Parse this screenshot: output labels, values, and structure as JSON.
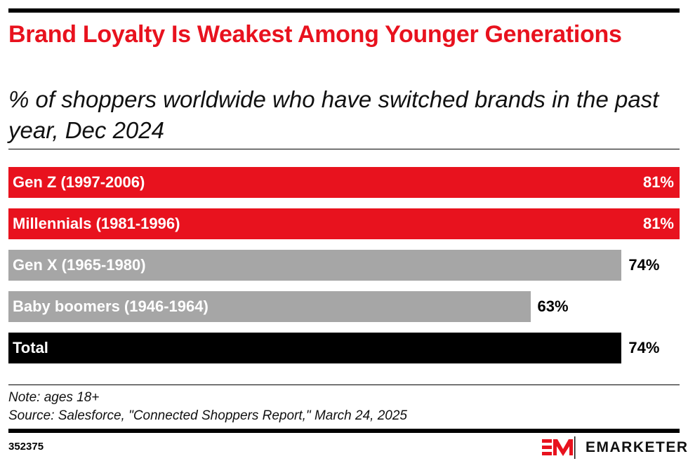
{
  "title": "Brand Loyalty Is Weakest Among Younger Generations",
  "subtitle": "% of shoppers worldwide who have switched brands in the past year, Dec 2024",
  "chart_data": {
    "type": "bar",
    "orientation": "horizontal",
    "categories": [
      "Gen Z (1997-2006)",
      "Millennials (1981-1996)",
      "Gen X (1965-1980)",
      "Baby boomers (1946-1964)",
      "Total"
    ],
    "values": [
      81,
      81,
      74,
      63,
      74
    ],
    "value_labels": [
      "81%",
      "81%",
      "74%",
      "63%",
      "74%"
    ],
    "colors": [
      "#e8121e",
      "#e8121e",
      "#a6a6a6",
      "#a6a6a6",
      "#000000"
    ],
    "xlim": [
      0,
      81
    ],
    "grid": false
  },
  "note": "Note: ages 18+",
  "source": "Source: Salesforce, \"Connected Shoppers Report,\" March 24, 2025",
  "chart_id": "352375",
  "brand": {
    "name": "EMARKETER",
    "logo_text": "EM",
    "color": "#e8121e"
  }
}
